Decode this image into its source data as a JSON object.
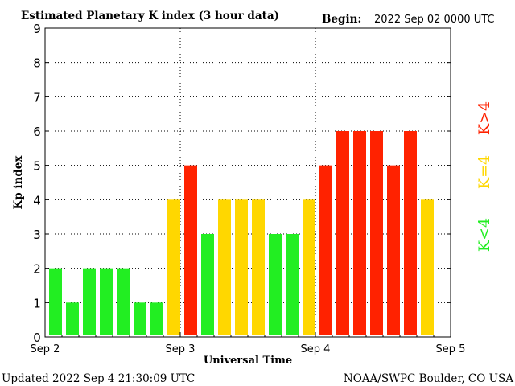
{
  "header": {
    "title": "Estimated Planetary K index (3 hour data)",
    "begin_label": "Begin:",
    "begin_value": "2022 Sep 02 0000 UTC"
  },
  "footer": {
    "updated": "Updated 2022 Sep  4 21:30:09 UTC",
    "source": "NOAA/SWPC Boulder, CO USA"
  },
  "legend": {
    "below": "K<4",
    "equal": "K=4",
    "above": "K>4"
  },
  "colors": {
    "below": "#22ee22",
    "equal": "#ffd700",
    "above": "#ff2200"
  },
  "chart_data": {
    "type": "bar",
    "title": "Estimated Planetary K index (3 hour data)",
    "xlabel": "Universal Time",
    "ylabel": "Kp index",
    "ylim": [
      0,
      9
    ],
    "yticks": [
      "0",
      "1",
      "2",
      "3",
      "4",
      "5",
      "6",
      "7",
      "8",
      "9"
    ],
    "xticks": [
      "Sep 2",
      "Sep 3",
      "Sep 4",
      "Sep 5"
    ],
    "bins_per_day": 8,
    "values": [
      2,
      1,
      2,
      2,
      2,
      1,
      1,
      4,
      5,
      3,
      4,
      4,
      4,
      3,
      3,
      4,
      5,
      6,
      6,
      6,
      5,
      6,
      4
    ],
    "grid": true
  }
}
